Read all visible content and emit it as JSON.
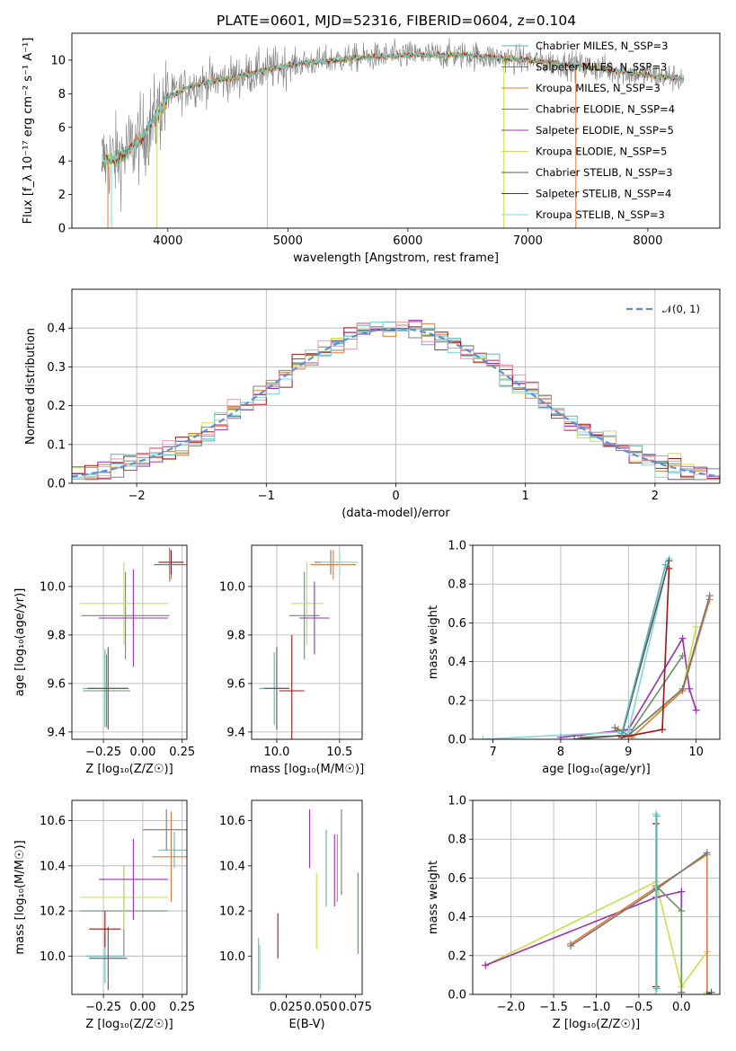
{
  "title": "PLATE=0601, MJD=52316, FIBERID=0604, z=0.104",
  "colors": [
    "#5fb3b3",
    "#777777",
    "#e07b39",
    "#6b8e6b",
    "#9b30b0",
    "#c8e04a",
    "#555555",
    "#a01515",
    "#7dd8d8"
  ],
  "chart_data": [
    {
      "id": "spectrum",
      "type": "line",
      "xlabel": "wavelength [Angstrom, rest frame]",
      "ylabel": "Flux [f_λ 10⁻¹⁷ erg cm⁻² s⁻¹ A⁻¹]",
      "xlim": [
        3200,
        8600
      ],
      "ylim": [
        0,
        11.6
      ],
      "xticks": [
        4000,
        5000,
        6000,
        7000,
        8000
      ],
      "yticks": [
        0,
        2,
        4,
        6,
        8,
        10
      ],
      "grid": false,
      "legend_position": "right",
      "continuum": {
        "x": [
          3450,
          3600,
          3800,
          4000,
          4200,
          4500,
          5000,
          5500,
          6000,
          6500,
          7000,
          7500,
          8000,
          8300
        ],
        "y": [
          4.0,
          4.2,
          5.5,
          7.8,
          8.5,
          8.9,
          9.7,
          10.1,
          10.3,
          10.3,
          10.0,
          9.6,
          9.1,
          8.9
        ]
      },
      "series": [
        {
          "name": "Chabrier MILES, N_SSP=3"
        },
        {
          "name": "Salpeter MILES, N_SSP=3"
        },
        {
          "name": "Kroupa MILES, N_SSP=3"
        },
        {
          "name": "Chabrier ELODIE, N_SSP=4"
        },
        {
          "name": "Salpeter ELODIE, N_SSP=5"
        },
        {
          "name": "Kroupa ELODIE, N_SSP=5"
        },
        {
          "name": "Chabrier STELIB, N_SSP=3"
        },
        {
          "name": "Salpeter STELIB, N_SSP=4"
        },
        {
          "name": "Kroupa STELIB, N_SSP=3"
        }
      ]
    },
    {
      "id": "residuals",
      "type": "line",
      "xlabel": "(data-model)/error",
      "ylabel": "Normed distribution",
      "xlim": [
        -2.5,
        2.5
      ],
      "ylim": [
        0,
        0.5
      ],
      "xticks": [
        -2,
        -1,
        0,
        1,
        2
      ],
      "yticks": [
        0.0,
        0.1,
        0.2,
        0.3,
        0.4
      ],
      "grid": true,
      "legend_position": "top-right",
      "reference": {
        "name": "𝒩(0, 1)",
        "color": "#5b8fd9"
      },
      "hist_bin_width": 0.1
    },
    {
      "id": "age_z",
      "type": "scatter",
      "xlabel": "Z [log₁₀(Z/Z☉)]",
      "ylabel": "age  [log₁₀(age/yr)]",
      "xlim": [
        -0.45,
        0.28
      ],
      "ylim": [
        9.37,
        10.17
      ],
      "xticks": [
        -0.25,
        0.0,
        0.25
      ],
      "yticks": [
        9.4,
        9.6,
        9.8,
        10.0
      ],
      "grid": true,
      "points": [
        {
          "x": -0.24,
          "y": 9.58,
          "xerr": 0.14,
          "yerr": 0.16,
          "c": 0
        },
        {
          "x": -0.23,
          "y": 9.57,
          "xerr": 0.15,
          "yerr": 0.15,
          "c": 3
        },
        {
          "x": -0.22,
          "y": 9.58,
          "xerr": 0.13,
          "yerr": 0.17,
          "c": 6
        },
        {
          "x": -0.11,
          "y": 9.88,
          "xerr": 0.28,
          "yerr": 0.18,
          "c": 3
        },
        {
          "x": -0.12,
          "y": 9.93,
          "xerr": 0.28,
          "yerr": 0.17,
          "c": 5
        },
        {
          "x": -0.06,
          "y": 9.87,
          "xerr": 0.22,
          "yerr": 0.2,
          "c": 4
        },
        {
          "x": 0.18,
          "y": 10.09,
          "xerr": 0.1,
          "yerr": 0.06,
          "c": 2
        },
        {
          "x": 0.18,
          "y": 10.1,
          "xerr": 0.08,
          "yerr": 0.05,
          "c": 7
        },
        {
          "x": 0.17,
          "y": 10.09,
          "xerr": 0.1,
          "yerr": 0.07,
          "c": 1
        }
      ]
    },
    {
      "id": "age_mass",
      "type": "scatter",
      "xlabel": "mass [log₁₀(M/M☉)]",
      "ylabel": "",
      "xlim": [
        9.8,
        10.68
      ],
      "ylim": [
        9.37,
        10.17
      ],
      "xticks": [
        10.0,
        10.5
      ],
      "yticks": [
        9.4,
        9.6,
        9.8,
        10.0
      ],
      "grid": true,
      "points": [
        {
          "x": 9.98,
          "y": 9.58,
          "xerr": 0.12,
          "yerr": 0.15,
          "c": 0
        },
        {
          "x": 10.0,
          "y": 9.58,
          "xerr": 0.1,
          "yerr": 0.17,
          "c": 6
        },
        {
          "x": 10.12,
          "y": 9.57,
          "xerr": 0.1,
          "yerr": 0.23,
          "c": 7
        },
        {
          "x": 10.22,
          "y": 9.88,
          "xerr": 0.12,
          "yerr": 0.18,
          "c": 3
        },
        {
          "x": 10.24,
          "y": 9.93,
          "xerr": 0.13,
          "yerr": 0.17,
          "c": 5
        },
        {
          "x": 10.3,
          "y": 9.87,
          "xerr": 0.12,
          "yerr": 0.15,
          "c": 4
        },
        {
          "x": 10.43,
          "y": 10.1,
          "xerr": 0.13,
          "yerr": 0.05,
          "c": 1
        },
        {
          "x": 10.45,
          "y": 10.09,
          "xerr": 0.18,
          "yerr": 0.06,
          "c": 2
        },
        {
          "x": 10.5,
          "y": 10.1,
          "xerr": 0.15,
          "yerr": 0.05,
          "c": 8
        }
      ]
    },
    {
      "id": "weight_age",
      "type": "line",
      "xlabel": "age  [log₁₀(age/yr)]",
      "ylabel": "mass weight",
      "xlim": [
        6.7,
        10.35
      ],
      "ylim": [
        0,
        1.0
      ],
      "xticks": [
        7,
        8,
        9,
        10
      ],
      "yticks": [
        0.0,
        0.2,
        0.4,
        0.6,
        0.8,
        1.0
      ],
      "grid": true,
      "series": [
        {
          "c": 3,
          "x": [
            8.3,
            9.0,
            9.8
          ],
          "y": [
            0.01,
            0.02,
            0.43
          ]
        },
        {
          "c": 4,
          "x": [
            8.0,
            9.0,
            9.8,
            9.9,
            10.0
          ],
          "y": [
            0.01,
            0.05,
            0.52,
            0.26,
            0.15
          ]
        },
        {
          "c": 5,
          "x": [
            9.0,
            9.8,
            10.0
          ],
          "y": [
            0.02,
            0.25,
            0.58
          ]
        },
        {
          "c": 2,
          "x": [
            8.85,
            9.05,
            9.8,
            10.2
          ],
          "y": [
            0.05,
            0.01,
            0.25,
            0.72
          ]
        },
        {
          "c": 1,
          "x": [
            8.8,
            9.0,
            9.8,
            10.2
          ],
          "y": [
            0.06,
            0.02,
            0.26,
            0.74
          ]
        },
        {
          "c": 7,
          "x": [
            8.9,
            9.5,
            9.6
          ],
          "y": [
            0.01,
            0.05,
            0.88
          ]
        },
        {
          "c": 8,
          "x": [
            6.85,
            9.0,
            9.6
          ],
          "y": [
            0.0,
            0.04,
            0.93
          ]
        },
        {
          "c": 6,
          "x": [
            8.2,
            8.9,
            9.6
          ],
          "y": [
            0.0,
            0.02,
            0.92
          ]
        },
        {
          "c": 0,
          "x": [
            8.9,
            9.55
          ],
          "y": [
            0.03,
            0.9
          ]
        }
      ]
    },
    {
      "id": "mass_z",
      "type": "scatter",
      "xlabel": "Z [log₁₀(Z/Z☉)]",
      "ylabel": "mass [log₁₀(M/M☉)]",
      "xlim": [
        -0.45,
        0.28
      ],
      "ylim": [
        9.83,
        10.69
      ],
      "xticks": [
        -0.25,
        0.0,
        0.25
      ],
      "yticks": [
        10.0,
        10.2,
        10.4,
        10.6
      ],
      "grid": true,
      "points": [
        {
          "x": -0.24,
          "y": 10.0,
          "xerr": 0.12,
          "yerr": 0.12,
          "c": 0
        },
        {
          "x": -0.22,
          "y": 9.99,
          "xerr": 0.12,
          "yerr": 0.14,
          "c": 6
        },
        {
          "x": -0.24,
          "y": 10.12,
          "xerr": 0.1,
          "yerr": 0.08,
          "c": 7
        },
        {
          "x": -0.12,
          "y": 10.2,
          "xerr": 0.28,
          "yerr": 0.2,
          "c": 3
        },
        {
          "x": -0.12,
          "y": 10.26,
          "xerr": 0.28,
          "yerr": 0.14,
          "c": 5
        },
        {
          "x": -0.06,
          "y": 10.34,
          "xerr": 0.22,
          "yerr": 0.18,
          "c": 4
        },
        {
          "x": 0.2,
          "y": 10.47,
          "xerr": 0.1,
          "yerr": 0.08,
          "c": 0
        },
        {
          "x": 0.18,
          "y": 10.44,
          "xerr": 0.12,
          "yerr": 0.2,
          "c": 2
        },
        {
          "x": 0.15,
          "y": 10.56,
          "xerr": 0.15,
          "yerr": 0.09,
          "c": 1
        }
      ]
    },
    {
      "id": "mass_ebv",
      "type": "scatter",
      "xlabel": "E(B-V)",
      "ylabel": "",
      "xlim": [
        0.0,
        0.08
      ],
      "ylim": [
        9.83,
        10.69
      ],
      "xticks": [
        0.025,
        0.05,
        0.075
      ],
      "yticks": [
        10.0,
        10.2,
        10.4,
        10.6
      ],
      "grid": false,
      "points": [
        {
          "x": 0.005,
          "y": 9.96,
          "yerr": 0.12,
          "c": 0
        },
        {
          "x": 0.006,
          "y": 9.95,
          "yerr": 0.1,
          "c": 8
        },
        {
          "x": 0.019,
          "y": 10.09,
          "yerr": 0.1,
          "c": 7
        },
        {
          "x": 0.042,
          "y": 10.52,
          "yerr": 0.13,
          "c": 4
        },
        {
          "x": 0.047,
          "y": 10.2,
          "yerr": 0.17,
          "c": 5
        },
        {
          "x": 0.054,
          "y": 10.39,
          "yerr": 0.17,
          "c": 0
        },
        {
          "x": 0.06,
          "y": 10.38,
          "yerr": 0.16,
          "c": 4
        },
        {
          "x": 0.062,
          "y": 10.39,
          "yerr": 0.15,
          "c": 2
        },
        {
          "x": 0.065,
          "y": 10.46,
          "yerr": 0.19,
          "c": 1
        },
        {
          "x": 0.077,
          "y": 10.19,
          "yerr": 0.18,
          "c": 3
        }
      ]
    },
    {
      "id": "weight_z",
      "type": "line",
      "xlabel": "Z [log₁₀(Z/Z☉)]",
      "ylabel": "mass weight",
      "xlim": [
        -2.45,
        0.45
      ],
      "ylim": [
        0,
        1.0
      ],
      "xticks": [
        -2.0,
        -1.5,
        -1.0,
        -0.5,
        0.0
      ],
      "yticks": [
        0.0,
        0.2,
        0.4,
        0.6,
        0.8,
        1.0
      ],
      "grid": true,
      "series": [
        {
          "c": 5,
          "x": [
            -2.3,
            -0.3,
            0.0,
            0.3,
            0.3
          ],
          "y": [
            0.15,
            0.58,
            0.04,
            0.22,
            0.01
          ]
        },
        {
          "c": 4,
          "x": [
            -2.3,
            -0.3,
            0.0,
            0.0
          ],
          "y": [
            0.15,
            0.5,
            0.53,
            0.01
          ]
        },
        {
          "c": 2,
          "x": [
            -1.3,
            -0.3,
            0.3,
            0.3
          ],
          "y": [
            0.26,
            0.55,
            0.72,
            0.0
          ]
        },
        {
          "c": 1,
          "x": [
            -1.3,
            -0.3,
            0.3
          ],
          "y": [
            0.25,
            0.54,
            0.73
          ]
        },
        {
          "c": 3,
          "x": [
            -0.3,
            0.0,
            0.0
          ],
          "y": [
            0.56,
            0.43,
            0.01
          ]
        },
        {
          "c": 7,
          "x": [
            -0.3,
            -0.3
          ],
          "y": [
            0.88,
            0.04
          ]
        },
        {
          "c": 8,
          "x": [
            -0.3,
            -0.3
          ],
          "y": [
            0.93,
            0.0
          ]
        },
        {
          "c": 0,
          "x": [
            -0.29,
            -0.29
          ],
          "y": [
            0.92,
            0.03
          ]
        },
        {
          "c": 6,
          "x": [
            0.3,
            0.35
          ],
          "y": [
            0.0,
            0.01
          ]
        }
      ]
    }
  ]
}
